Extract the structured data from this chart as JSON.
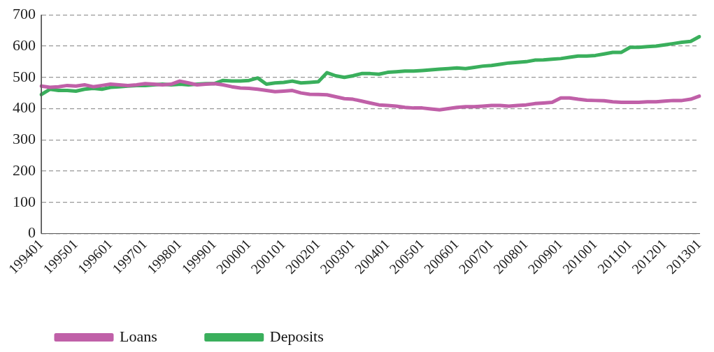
{
  "chart_data": {
    "type": "line",
    "categories": [
      "199401",
      null,
      null,
      null,
      "199501",
      null,
      null,
      null,
      "199601",
      null,
      null,
      null,
      "199701",
      null,
      null,
      null,
      "199801",
      null,
      null,
      null,
      "199901",
      null,
      null,
      null,
      "200001",
      null,
      null,
      null,
      "200101",
      null,
      null,
      null,
      "200201",
      null,
      null,
      null,
      "200301",
      null,
      null,
      null,
      "200401",
      null,
      null,
      null,
      "200501",
      null,
      null,
      null,
      "200601",
      null,
      null,
      null,
      "200701",
      null,
      null,
      null,
      "200801",
      null,
      null,
      null,
      "200901",
      null,
      null,
      null,
      "201001",
      null,
      null,
      null,
      "201101",
      null,
      null,
      null,
      "201201",
      null,
      null,
      null,
      "201301"
    ],
    "series": [
      {
        "name": "Loans",
        "color": "#c060a8",
        "values": [
          472,
          468,
          470,
          474,
          472,
          476,
          470,
          474,
          478,
          476,
          474,
          476,
          480,
          478,
          476,
          478,
          488,
          482,
          476,
          478,
          480,
          476,
          470,
          466,
          465,
          462,
          458,
          454,
          456,
          458,
          450,
          446,
          445,
          444,
          438,
          432,
          430,
          424,
          418,
          412,
          410,
          408,
          404,
          402,
          402,
          399,
          396,
          400,
          404,
          406,
          406,
          408,
          410,
          410,
          408,
          410,
          412,
          416,
          418,
          420,
          434,
          434,
          430,
          427,
          426,
          425,
          422,
          420,
          420,
          420,
          422,
          422,
          424,
          426,
          426,
          430,
          440
        ]
      },
      {
        "name": "Deposits",
        "color": "#3aaf5c",
        "values": [
          445,
          462,
          458,
          458,
          456,
          462,
          465,
          462,
          468,
          470,
          472,
          474,
          474,
          476,
          478,
          476,
          478,
          476,
          478,
          480,
          480,
          490,
          488,
          488,
          490,
          498,
          478,
          482,
          484,
          488,
          482,
          484,
          486,
          515,
          505,
          500,
          505,
          512,
          512,
          510,
          516,
          518,
          520,
          520,
          522,
          524,
          526,
          528,
          530,
          528,
          532,
          536,
          538,
          542,
          546,
          548,
          550,
          555,
          556,
          558,
          560,
          564,
          568,
          568,
          570,
          575,
          580,
          580,
          596,
          596,
          598,
          600,
          604,
          608,
          612,
          615,
          630
        ]
      }
    ],
    "ylim": [
      0,
      700
    ],
    "yticks": [
      0,
      100,
      200,
      300,
      400,
      500,
      600,
      700
    ],
    "grid": "y",
    "legend": "bottom",
    "marker": "none",
    "line_style": "solid"
  }
}
